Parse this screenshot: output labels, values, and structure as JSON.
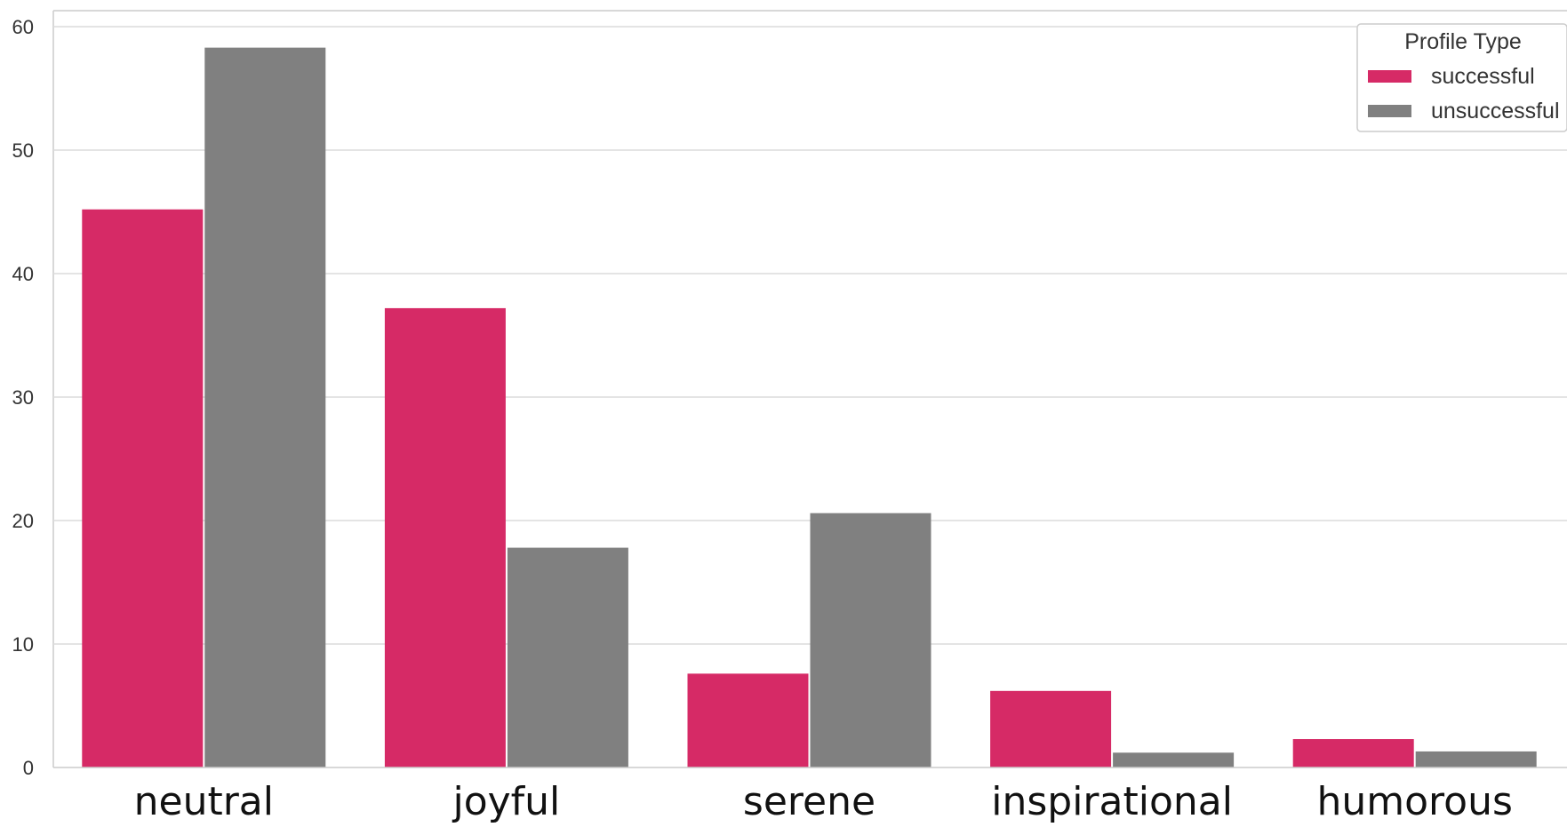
{
  "chart_data": {
    "type": "bar",
    "title": "",
    "xlabel": "",
    "ylabel": "",
    "categories": [
      "neutral",
      "joyful",
      "serene",
      "inspirational",
      "humorous"
    ],
    "series": [
      {
        "name": "successful",
        "color": "#d62a66",
        "values": [
          45.2,
          37.2,
          7.6,
          6.2,
          2.3
        ]
      },
      {
        "name": "unsuccessful",
        "color": "#808080",
        "values": [
          58.3,
          17.8,
          20.6,
          1.2,
          1.3
        ]
      }
    ],
    "ylim": [
      0,
      60
    ],
    "yticks": [
      "0",
      "10",
      "20",
      "30",
      "40",
      "50",
      "60"
    ],
    "grid": true,
    "legend": {
      "title": "Profile Type",
      "placement": "top-right"
    }
  }
}
